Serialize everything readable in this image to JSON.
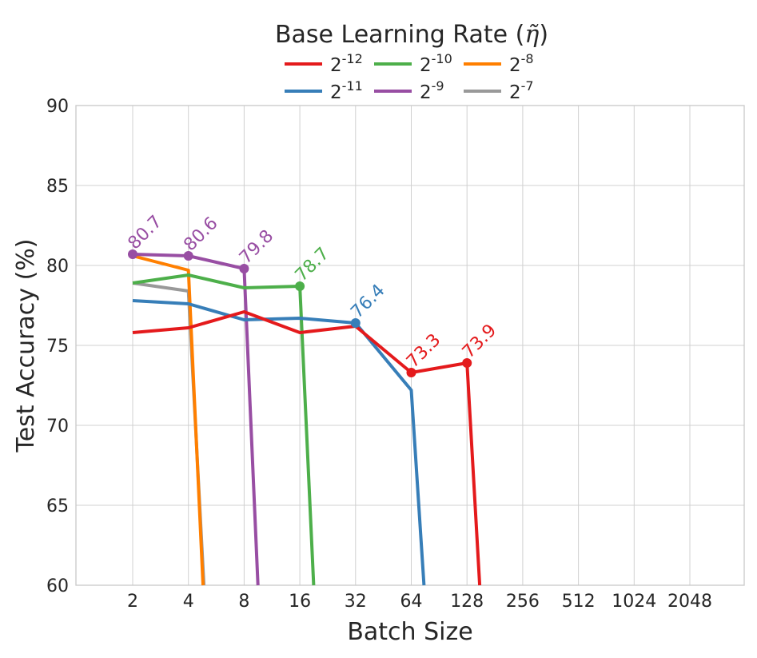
{
  "chart_data": {
    "type": "line",
    "title": "",
    "legend": {
      "title_prefix": "Base Learning Rate (",
      "title_symbol": "η̃",
      "title_suffix": ")",
      "placement": "top-center"
    },
    "xlabel": "Batch Size",
    "ylabel": "Test Accuracy (%)",
    "x_categories": [
      "2",
      "4",
      "8",
      "16",
      "32",
      "64",
      "128",
      "256",
      "512",
      "1024",
      "2048"
    ],
    "ylim": [
      60,
      90
    ],
    "y_ticks": [
      "60",
      "65",
      "70",
      "75",
      "80",
      "85",
      "90"
    ],
    "grid": true,
    "series": [
      {
        "name": "2-12",
        "base": "2",
        "exp": "-12",
        "color": "#e41a1c",
        "x": [
          2,
          4,
          8,
          16,
          32,
          64,
          128,
          150
        ],
        "y": [
          75.8,
          76.1,
          77.1,
          75.8,
          76.2,
          73.3,
          73.9,
          60
        ],
        "best_index": 6,
        "annotate": [
          5,
          6
        ]
      },
      {
        "name": "2-11",
        "base": "2",
        "exp": "-11",
        "color": "#377eb8",
        "x": [
          2,
          4,
          8,
          16,
          32,
          64,
          75
        ],
        "y": [
          77.8,
          77.6,
          76.6,
          76.7,
          76.4,
          72.2,
          60
        ],
        "best_index": 4,
        "annotate": [
          4
        ]
      },
      {
        "name": "2-10",
        "base": "2",
        "exp": "-10",
        "color": "#4daf4a",
        "x": [
          2,
          4,
          8,
          16,
          19
        ],
        "y": [
          78.9,
          79.4,
          78.6,
          78.7,
          60
        ],
        "best_index": 3,
        "annotate": [
          3
        ]
      },
      {
        "name": "2-9",
        "base": "2",
        "exp": "-9",
        "color": "#984ea3",
        "x": [
          2,
          4,
          8,
          9.5
        ],
        "y": [
          80.7,
          80.6,
          79.8,
          60
        ],
        "best_index": 0,
        "annotate": [
          0,
          1,
          2
        ]
      },
      {
        "name": "2-8",
        "base": "2",
        "exp": "-8",
        "color": "#ff7f00",
        "x": [
          2,
          4,
          4.8
        ],
        "y": [
          80.6,
          79.7,
          60
        ],
        "best_index": -1,
        "annotate": []
      },
      {
        "name": "2-7",
        "base": "2",
        "exp": "-7",
        "color": "#999999",
        "x": [
          2,
          4,
          4.85
        ],
        "y": [
          78.9,
          78.4,
          60
        ],
        "best_index": -1,
        "annotate": []
      }
    ],
    "annotations": [
      {
        "series": "2-9",
        "x": 2,
        "y": 80.7,
        "label": "80.7"
      },
      {
        "series": "2-9",
        "x": 4,
        "y": 80.6,
        "label": "80.6"
      },
      {
        "series": "2-9",
        "x": 8,
        "y": 79.8,
        "label": "79.8"
      },
      {
        "series": "2-10",
        "x": 16,
        "y": 78.7,
        "label": "78.7"
      },
      {
        "series": "2-11",
        "x": 32,
        "y": 76.4,
        "label": "76.4"
      },
      {
        "series": "2-12",
        "x": 64,
        "y": 73.3,
        "label": "73.3"
      },
      {
        "series": "2-12",
        "x": 128,
        "y": 73.9,
        "label": "73.9"
      }
    ]
  }
}
